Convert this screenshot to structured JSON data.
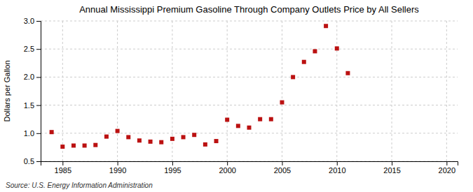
{
  "chart_data": {
    "type": "scatter",
    "title": "Annual Mississippi Premium Gasoline Through Company Outlets Price by All Sellers",
    "ylabel": "Dollars per Gallon",
    "source": "Source: U.S. Energy Information Administration",
    "x": [
      1984,
      1985,
      1986,
      1987,
      1988,
      1989,
      1990,
      1991,
      1992,
      1993,
      1994,
      1995,
      1996,
      1997,
      1998,
      1999,
      2000,
      2001,
      2002,
      2003,
      2004,
      2005,
      2006,
      2007,
      2008,
      2009,
      2010,
      2011
    ],
    "values": [
      1.02,
      0.76,
      0.78,
      0.78,
      0.79,
      0.94,
      1.04,
      0.93,
      0.87,
      0.85,
      0.84,
      0.9,
      0.93,
      0.97,
      0.8,
      0.86,
      1.24,
      1.13,
      1.1,
      1.25,
      1.25,
      1.55,
      2.0,
      2.27,
      2.46,
      2.91,
      2.51,
      2.07
    ],
    "color": "#bb1111",
    "marker": "square",
    "xlim": [
      1983,
      2021
    ],
    "ylim": [
      0.5,
      3.0
    ],
    "xticks": [
      1985,
      1990,
      1995,
      2000,
      2005,
      2010,
      2015,
      2020
    ],
    "yticks": [
      0.5,
      {
        "value": 1,
        "label": "1.0"
      },
      1.5,
      {
        "value": 2,
        "label": "2.0"
      },
      2.5,
      {
        "value": 3,
        "label": "3.0"
      }
    ],
    "grid": true
  }
}
